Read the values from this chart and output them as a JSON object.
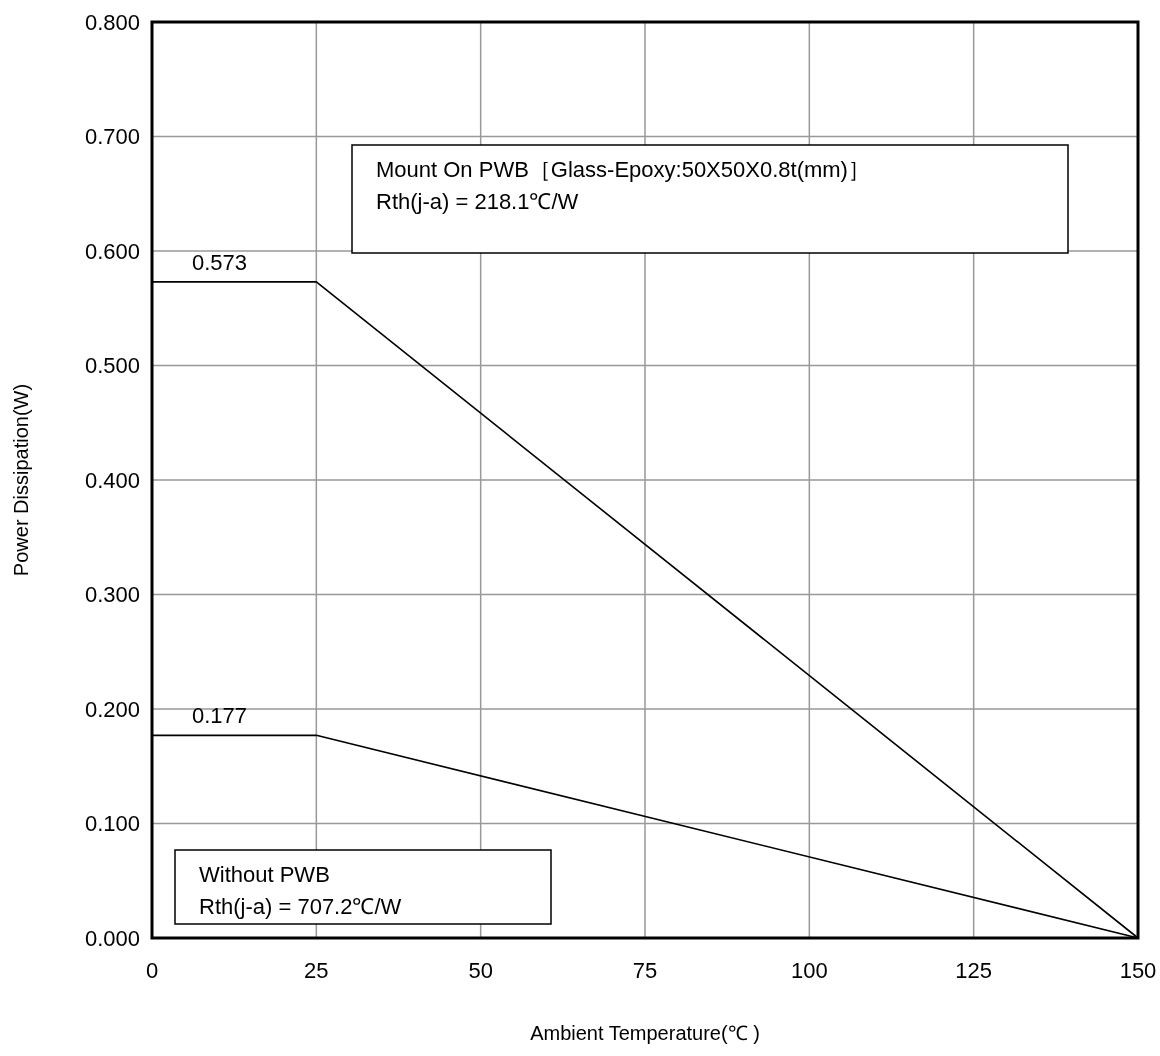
{
  "chart_data": {
    "type": "line",
    "xlabel": "Ambient Temperature(℃ )",
    "ylabel": "Power Dissipation(W)",
    "xlim": [
      0,
      150
    ],
    "xticks": [
      0,
      25,
      50,
      75,
      100,
      125,
      150
    ],
    "ylim": [
      0,
      0.8
    ],
    "yticks": [
      {
        "value": 0,
        "label": "0.000"
      },
      {
        "value": 0.1,
        "label": "0.100"
      },
      {
        "value": 0.2,
        "label": "0.200"
      },
      {
        "value": 0.3,
        "label": "0.300"
      },
      {
        "value": 0.4,
        "label": "0.400"
      },
      {
        "value": 0.5,
        "label": "0.500"
      },
      {
        "value": 0.6,
        "label": "0.600"
      },
      {
        "value": 0.7,
        "label": "0.700"
      },
      {
        "value": 0.8,
        "label": "0.800"
      }
    ],
    "grid": true,
    "marker": "none",
    "line_style": "solid",
    "series": [
      {
        "color": "#000000",
        "x": [
          0,
          25,
          150
        ],
        "values": [
          0.573,
          0.573,
          0
        ],
        "value_labels": [
          "0.573",
          null,
          null
        ]
      },
      {
        "color": "#000000",
        "x": [
          0,
          25,
          150
        ],
        "values": [
          0.177,
          0.177,
          0
        ],
        "value_labels": [
          "0.177",
          null,
          null
        ]
      }
    ],
    "annotations": [
      "Mount On PWB［Glass-Epoxy:50X50X0.8t(mm)］\nRth(j-a) = 218.1℃/W",
      "Without PWB\nRth(j-a) = 707.2℃/W"
    ]
  }
}
